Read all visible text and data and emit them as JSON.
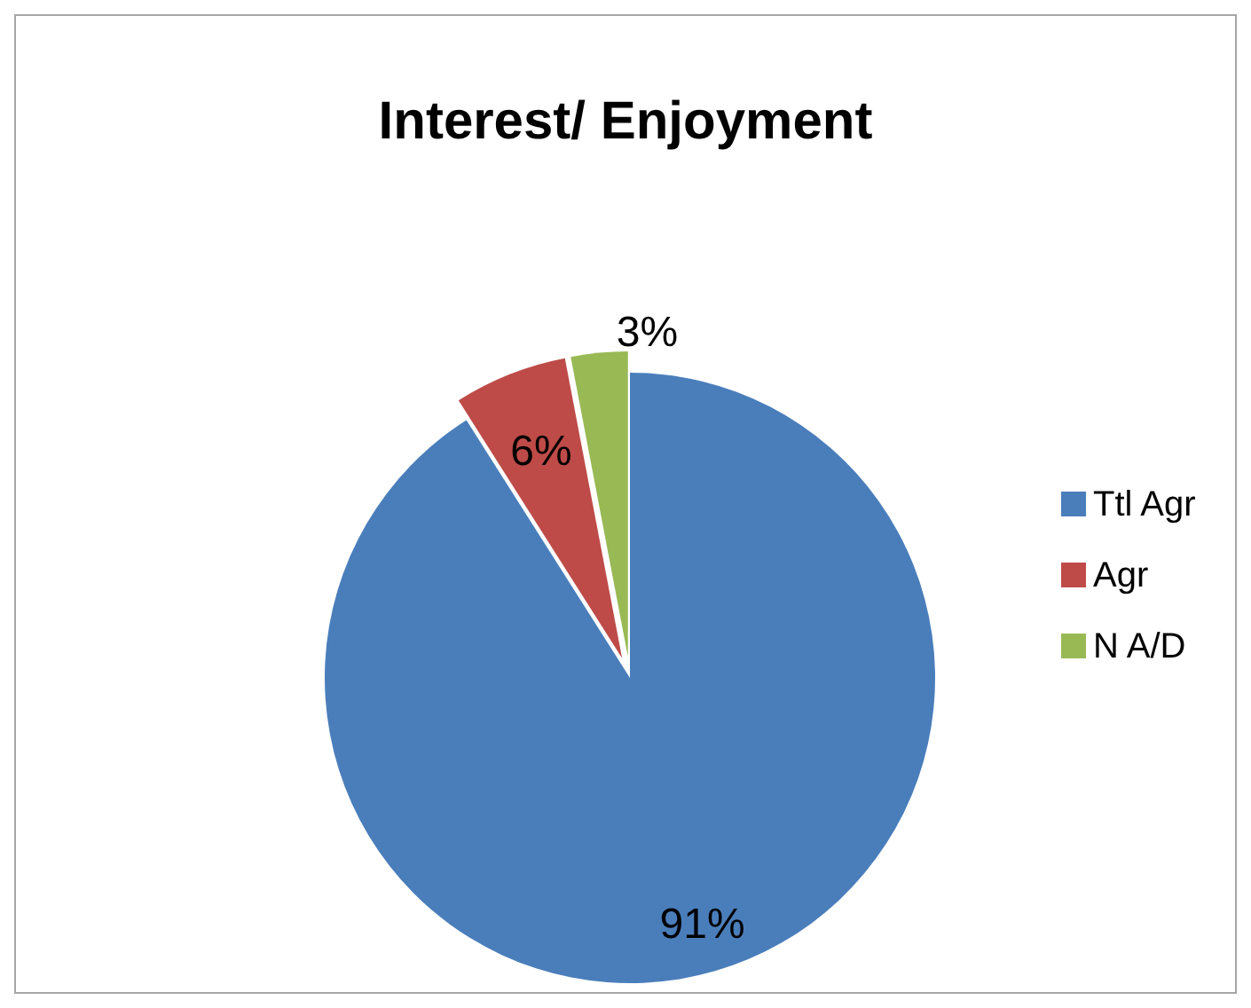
{
  "chart_data": {
    "type": "pie",
    "title": "Interest/ Enjoyment",
    "categories": [
      "Ttl Agr",
      "Agr",
      "N A/D"
    ],
    "values": [
      91,
      6,
      3
    ],
    "colors": [
      "#4a7ebb",
      "#be4b48",
      "#98b954"
    ],
    "value_labels": [
      "91%",
      "6%",
      "3%"
    ],
    "legend": "right"
  }
}
